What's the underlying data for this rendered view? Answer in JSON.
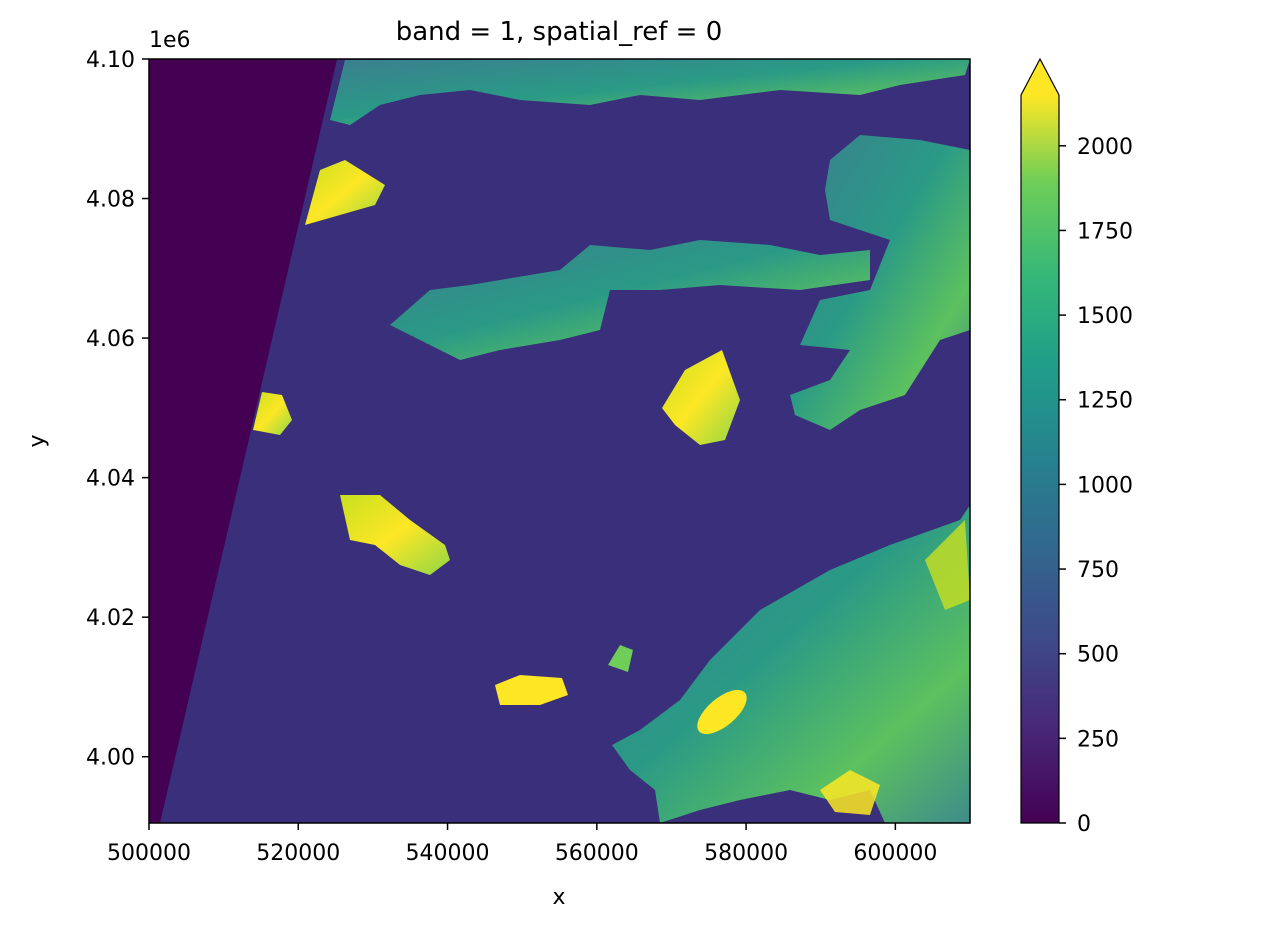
{
  "chart_data": {
    "type": "heatmap",
    "title": "band = 1, spatial_ref = 0",
    "xlabel": "x",
    "ylabel": "y",
    "xlim": [
      500000,
      610000
    ],
    "ylim": [
      3990500,
      4100000
    ],
    "y_offset_label": "1e6",
    "x_ticks": [
      500000,
      520000,
      540000,
      560000,
      580000,
      600000
    ],
    "x_tick_labels": [
      "500000",
      "520000",
      "540000",
      "560000",
      "580000",
      "600000"
    ],
    "y_ticks": [
      4000000,
      4020000,
      4040000,
      4060000,
      4080000,
      4100000
    ],
    "y_tick_labels": [
      "4.00",
      "4.02",
      "4.04",
      "4.06",
      "4.08",
      "4.10"
    ],
    "colorbar": {
      "colormap": "viridis",
      "vmin": 0,
      "vmax": 2150,
      "extend": "max",
      "ticks": [
        0,
        250,
        500,
        750,
        1000,
        1250,
        1500,
        1750,
        2000
      ],
      "tick_labels": [
        "0",
        "250",
        "500",
        "750",
        "1000",
        "1250",
        "1500",
        "1750",
        "2000"
      ]
    },
    "colors": {
      "nodata": "#440154",
      "sea": "#3a2f7a",
      "land_mid": "#2c8d8c",
      "land_high": "#9fda3a",
      "land_max": "#fde725"
    }
  }
}
